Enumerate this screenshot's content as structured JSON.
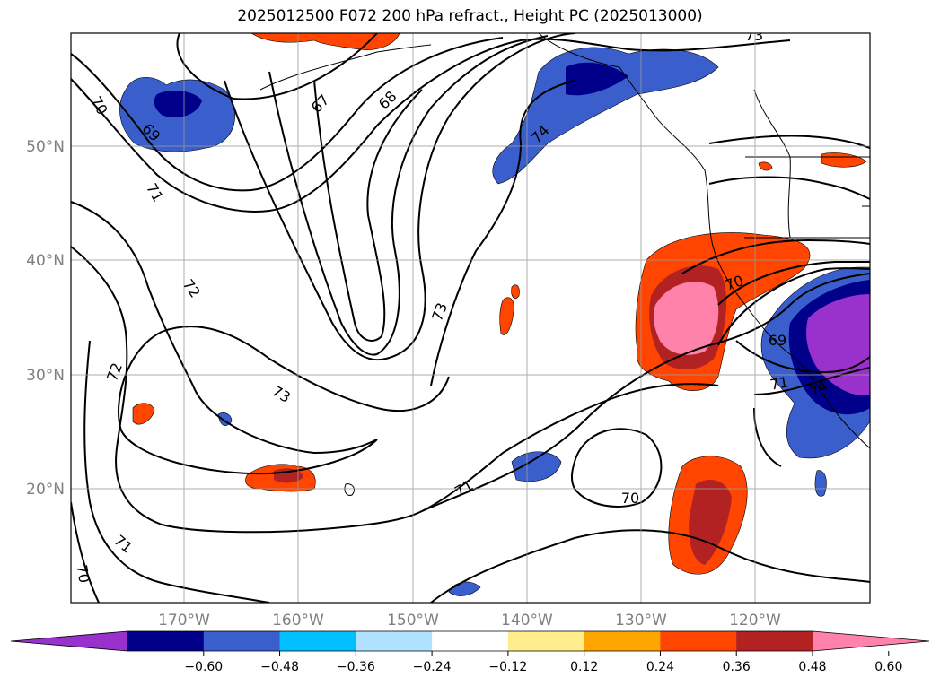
{
  "title": "2025012500 F072 200 hPa refract., Height PC (2025013000)",
  "lat_labels": [
    "50°N",
    "40°N",
    "30°N",
    "20°N"
  ],
  "lon_labels": [
    "170°W",
    "160°W",
    "150°W",
    "140°W",
    "130°W",
    "120°W"
  ],
  "colorbar": {
    "colors": [
      "#9932cc",
      "#00008b",
      "#3a5fcd",
      "#00bfff",
      "#b0e2ff",
      "#ffffff",
      "#ffec8b",
      "#ffa500",
      "#ff4500",
      "#b22222",
      "#ff82ab"
    ],
    "tick_labels": [
      "−0.60",
      "−0.48",
      "−0.36",
      "−0.24",
      "−0.12",
      "0.12",
      "0.24",
      "0.36",
      "0.48",
      "0.60"
    ]
  },
  "contour_labels": [
    {
      "text": "70"
    },
    {
      "text": "69"
    },
    {
      "text": "71"
    },
    {
      "text": "72"
    },
    {
      "text": "72"
    },
    {
      "text": "73"
    },
    {
      "text": "67"
    },
    {
      "text": "68"
    },
    {
      "text": "73"
    },
    {
      "text": "74"
    },
    {
      "text": "73"
    },
    {
      "text": "71"
    },
    {
      "text": "70"
    },
    {
      "text": "71"
    },
    {
      "text": "70"
    },
    {
      "text": "70"
    },
    {
      "text": "69"
    },
    {
      "text": "71"
    },
    {
      "text": "74"
    }
  ]
}
